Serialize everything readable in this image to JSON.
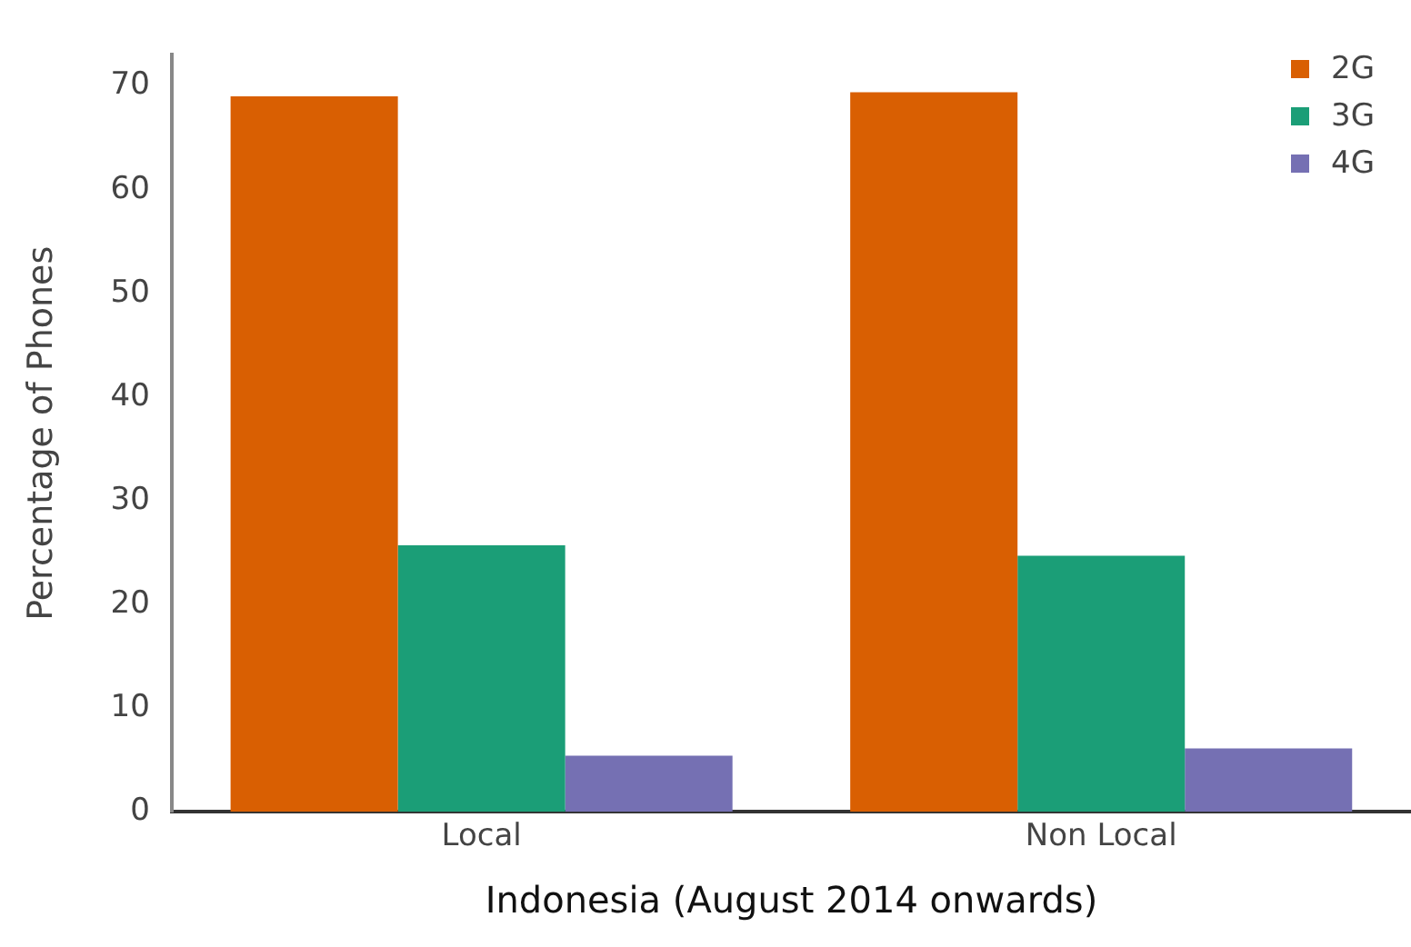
{
  "chart_data": {
    "type": "bar",
    "xlabel": "Indonesia (August 2014 onwards)",
    "ylabel": "Percentage of Phones",
    "categories": [
      "Local",
      "Non Local"
    ],
    "series": [
      {
        "name": "2G",
        "color": "#d95f02",
        "values": [
          69.0,
          69.4
        ]
      },
      {
        "name": "3G",
        "color": "#1b9e77",
        "values": [
          25.7,
          24.7
        ]
      },
      {
        "name": "4G",
        "color": "#7570b3",
        "values": [
          5.4,
          6.1
        ]
      }
    ],
    "ylim": [
      0,
      73
    ],
    "yticks": [
      0,
      10,
      20,
      30,
      40,
      50,
      60,
      70
    ],
    "grid": false,
    "legend": "top right"
  }
}
